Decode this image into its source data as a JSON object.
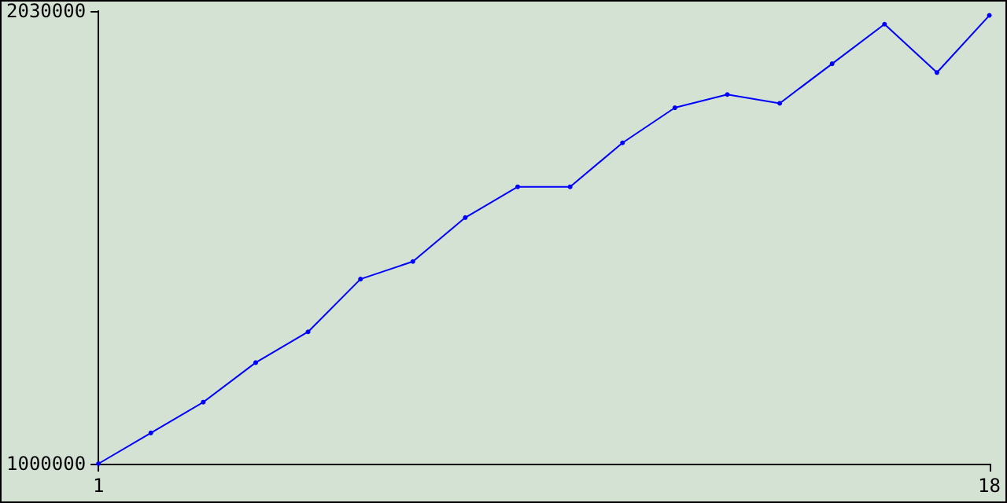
{
  "chart_data": {
    "type": "line",
    "x": [
      1,
      2,
      3,
      4,
      5,
      6,
      7,
      8,
      9,
      10,
      11,
      12,
      13,
      14,
      15,
      16,
      17,
      18
    ],
    "series": [
      {
        "color": "#0000ff",
        "values": [
          1000000,
          1070000,
          1140000,
          1230000,
          1300000,
          1420000,
          1460000,
          1560000,
          1630000,
          1630000,
          1730000,
          1810000,
          1840000,
          1820000,
          1910000,
          2000000,
          1890000,
          2020000
        ]
      }
    ],
    "xlim": [
      1,
      18
    ],
    "xticks": [
      1,
      18
    ],
    "ylim": [
      1000000,
      2030000
    ],
    "yticks": [
      1000000,
      2030000
    ],
    "grid": false,
    "marker": "circle",
    "line_style": "solid"
  }
}
